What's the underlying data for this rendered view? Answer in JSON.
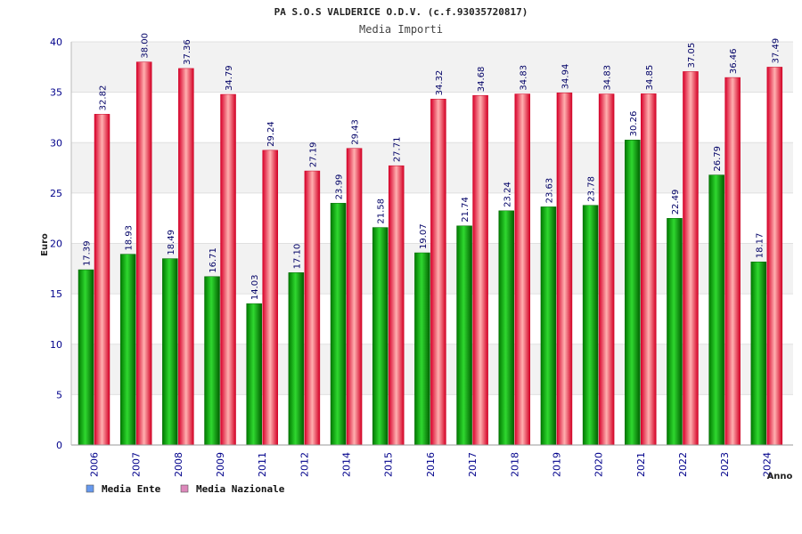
{
  "chart_data": {
    "type": "bar",
    "title": "PA S.O.S VALDERICE O.D.V. (c.f.93035720817)",
    "subtitle": "Media Importi",
    "xlabel": "Anno",
    "ylabel": "Euro",
    "ylim": [
      0,
      40
    ],
    "yticks": [
      "0",
      "5",
      "10",
      "15",
      "20",
      "25",
      "30",
      "35",
      "40"
    ],
    "categories": [
      "2006",
      "2007",
      "2008",
      "2009",
      "2011",
      "2012",
      "2014",
      "2015",
      "2016",
      "2017",
      "2018",
      "2019",
      "2020",
      "2021",
      "2022",
      "2023",
      "2024"
    ],
    "series": [
      {
        "name": "Media Ente",
        "values": [
          17.39,
          18.93,
          18.49,
          16.71,
          14.03,
          17.1,
          23.99,
          21.58,
          19.07,
          21.74,
          23.24,
          23.63,
          23.78,
          30.26,
          22.49,
          26.79,
          18.17
        ],
        "labels": [
          "17.39",
          "18.93",
          "18.49",
          "16.71",
          "14.03",
          "17.10",
          "23.99",
          "21.58",
          "19.07",
          "21.74",
          "23.24",
          "23.63",
          "23.78",
          "30.26",
          "22.49",
          "26.79",
          "18.17"
        ]
      },
      {
        "name": "Media Nazionale",
        "values": [
          32.82,
          38.0,
          37.36,
          34.79,
          29.24,
          27.19,
          29.43,
          27.71,
          34.32,
          34.68,
          34.83,
          34.94,
          34.83,
          34.85,
          37.05,
          36.46,
          37.49
        ],
        "labels": [
          "32.82",
          "38.00",
          "37.36",
          "34.79",
          "29.24",
          "27.19",
          "29.43",
          "27.71",
          "34.32",
          "34.68",
          "34.83",
          "34.94",
          "34.83",
          "34.85",
          "37.05",
          "36.46",
          "37.49"
        ]
      }
    ],
    "legend": [
      {
        "label": "Media Ente",
        "color": "#6699ee"
      },
      {
        "label": "Media Nazionale",
        "color": "#dd88bb"
      }
    ],
    "grid": true,
    "legend_position": "bottom-left"
  },
  "colors": {
    "series1_dark": "#006600",
    "series1_light": "#33dd33",
    "series2_dark": "#cc0022",
    "series2_light": "#ffaaaa",
    "band": "#f2f2f2"
  }
}
